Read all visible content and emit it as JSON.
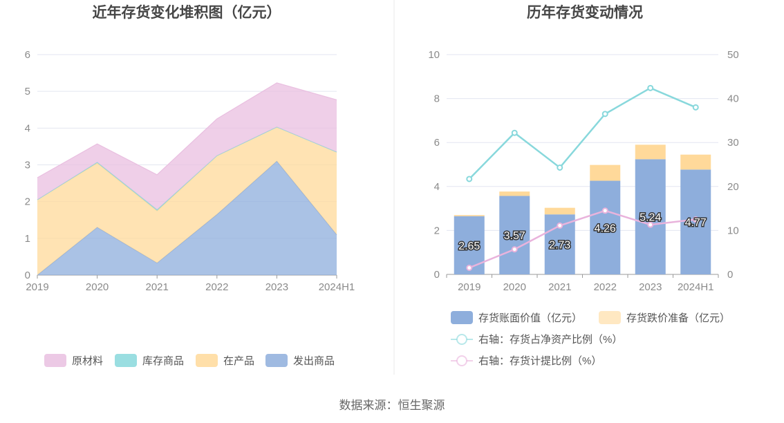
{
  "source_text": "数据来源：恒生聚源",
  "chart_data": [
    {
      "type": "area",
      "stacked": true,
      "title": "近年存货变化堆积图（亿元）",
      "categories": [
        "2019",
        "2020",
        "2021",
        "2022",
        "2023",
        "2024H1"
      ],
      "ylim": [
        0,
        6
      ],
      "yticks": [
        "0",
        "1",
        "2",
        "3",
        "4",
        "5",
        "6"
      ],
      "grid": true,
      "legend_position": "bottom",
      "series": [
        {
          "name": "发出商品",
          "color": "#8eaedc",
          "values": [
            0.0,
            1.3,
            0.33,
            1.65,
            3.1,
            1.1
          ]
        },
        {
          "name": "在产品",
          "color": "#ffd99a",
          "values": [
            2.05,
            1.75,
            1.42,
            1.6,
            0.93,
            2.25
          ]
        },
        {
          "name": "库存商品",
          "color": "#88d8dc",
          "values": [
            0.0,
            0.02,
            0.03,
            0.0,
            0.0,
            0.0
          ]
        },
        {
          "name": "原材料",
          "color": "#e9bfe0",
          "values": [
            0.6,
            0.5,
            0.95,
            1.0,
            1.2,
            1.42
          ]
        }
      ],
      "legend_order": [
        "原材料",
        "库存商品",
        "在产品",
        "发出商品"
      ]
    },
    {
      "type": "bar",
      "stacked": true,
      "title": "历年存货变动情况",
      "categories": [
        "2019",
        "2020",
        "2021",
        "2022",
        "2023",
        "2024H1"
      ],
      "ylim": [
        0,
        10
      ],
      "yticks": [
        "0",
        "2",
        "4",
        "6",
        "8",
        "10"
      ],
      "y2lim": [
        0,
        50
      ],
      "y2ticks": [
        "0",
        "10",
        "20",
        "30",
        "40",
        "50"
      ],
      "grid": true,
      "legend_position": "bottom",
      "series": [
        {
          "name": "存货账面价值（亿元）",
          "color": "#8eaedc",
          "axis": "left",
          "values": [
            2.65,
            3.57,
            2.73,
            4.26,
            5.24,
            4.77
          ],
          "labels": [
            "2.65",
            "3.57",
            "2.73",
            "4.26",
            "5.24",
            "4.77"
          ]
        },
        {
          "name": "存货跌价准备（亿元）",
          "color": "#ffd99a",
          "axis": "left",
          "values": [
            0.05,
            0.2,
            0.3,
            0.72,
            0.66,
            0.68
          ]
        }
      ],
      "line_series": [
        {
          "name": "右轴：存货占净资产比例（%）",
          "color": "#88d8dc",
          "axis": "right",
          "values": [
            21.7,
            32.2,
            24.3,
            36.5,
            42.4,
            38.0
          ]
        },
        {
          "name": "右轴：存货计提比例（%）",
          "color": "#e9b3dc",
          "axis": "right",
          "values": [
            1.5,
            5.7,
            11.1,
            14.5,
            11.3,
            12.5
          ]
        }
      ]
    }
  ]
}
